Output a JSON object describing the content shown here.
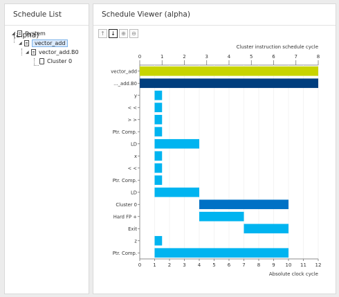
{
  "left_panel": {
    "title": "Schedule List (alpha)",
    "tree": [
      {
        "label": "System"
      },
      {
        "label": "vector_add"
      },
      {
        "label": "vector_add.B0"
      },
      {
        "label": "Cluster 0"
      }
    ]
  },
  "right_panel": {
    "title": "Schedule Viewer (alpha)",
    "toolbar": [
      {
        "icon": "arrow-up-icon",
        "glyph": "↑"
      },
      {
        "icon": "arrow-down-icon",
        "glyph": "↓"
      },
      {
        "icon": "zoom-in-icon",
        "glyph": "⊕"
      },
      {
        "icon": "zoom-out-icon",
        "glyph": "⊖"
      }
    ]
  },
  "chart_data": {
    "type": "bar",
    "top_axis_label": "Cluster instruction schedule cycle",
    "bottom_axis_label": "Absolute clock cycle",
    "top_ticks": [
      "0",
      "1",
      "2",
      "3",
      "4",
      "5",
      "6",
      "7",
      "8"
    ],
    "bottom_ticks": [
      "0",
      "1",
      "2",
      "3",
      "4",
      "5",
      "6",
      "7",
      "8",
      "9",
      "10",
      "11",
      "12"
    ],
    "xlim": [
      0,
      12
    ],
    "rows": [
      {
        "label": "vector_add",
        "start": 0,
        "end": 12,
        "color": "#c8d400"
      },
      {
        "label": "..._add.B0",
        "start": 0,
        "end": 12,
        "color": "#003e7e"
      },
      {
        "label": "y",
        "start": 1,
        "end": 1.5,
        "color": "#00b4f0"
      },
      {
        "label": "< <",
        "start": 1,
        "end": 1.5,
        "color": "#00b4f0"
      },
      {
        "label": "> >",
        "start": 1,
        "end": 1.5,
        "color": "#00b4f0"
      },
      {
        "label": "Ptr. Comp.",
        "start": 1,
        "end": 1.5,
        "color": "#00b4f0"
      },
      {
        "label": "LD",
        "start": 1,
        "end": 4,
        "color": "#00b4f0"
      },
      {
        "label": "x",
        "start": 1,
        "end": 1.5,
        "color": "#00b4f0"
      },
      {
        "label": "< <",
        "start": 1,
        "end": 1.5,
        "color": "#00b4f0"
      },
      {
        "label": "Ptr. Comp.",
        "start": 1,
        "end": 1.5,
        "color": "#00b4f0"
      },
      {
        "label": "LD",
        "start": 1,
        "end": 4,
        "color": "#00b4f0"
      },
      {
        "label": "Cluster 0",
        "start": 4,
        "end": 10,
        "color": "#0071c5"
      },
      {
        "label": "Hard FP +",
        "start": 4,
        "end": 7,
        "color": "#00b4f0"
      },
      {
        "label": "Exit",
        "start": 7,
        "end": 10,
        "color": "#00b4f0"
      },
      {
        "label": "z",
        "start": 1,
        "end": 1.5,
        "color": "#00b4f0"
      },
      {
        "label": "Ptr. Comp.",
        "start": 1,
        "end": 10,
        "color": "#00b4f0"
      }
    ]
  }
}
